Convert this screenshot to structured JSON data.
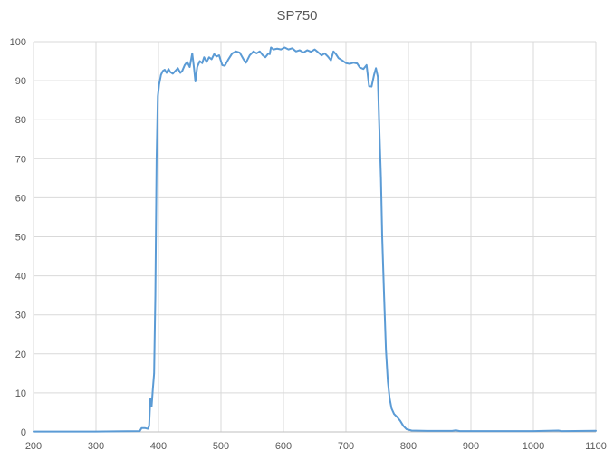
{
  "chart_data": {
    "type": "line",
    "title": "SP750",
    "xlabel": "",
    "ylabel": "",
    "xlim": [
      200,
      1100
    ],
    "ylim": [
      0,
      100
    ],
    "x_ticks": [
      200,
      300,
      400,
      500,
      600,
      700,
      800,
      900,
      1000,
      1100
    ],
    "y_ticks": [
      0,
      10,
      20,
      30,
      40,
      50,
      60,
      70,
      80,
      90,
      100
    ],
    "grid": true,
    "legend": "none",
    "series": [
      {
        "color": "#5b9bd5",
        "points": [
          [
            200,
            0.1
          ],
          [
            300,
            0.1
          ],
          [
            370,
            0.2
          ],
          [
            373,
            1.0
          ],
          [
            378,
            1.0
          ],
          [
            383,
            0.8
          ],
          [
            385,
            1.5
          ],
          [
            387,
            8.5
          ],
          [
            389,
            6.5
          ],
          [
            391,
            11
          ],
          [
            393,
            15
          ],
          [
            395,
            35
          ],
          [
            397,
            70
          ],
          [
            399,
            86
          ],
          [
            401,
            89
          ],
          [
            404,
            91.5
          ],
          [
            407,
            92.5
          ],
          [
            410,
            92.8
          ],
          [
            413,
            92.0
          ],
          [
            416,
            93.0
          ],
          [
            419,
            92.2
          ],
          [
            423,
            91.8
          ],
          [
            427,
            92.5
          ],
          [
            431,
            93.2
          ],
          [
            435,
            92.0
          ],
          [
            438,
            92.5
          ],
          [
            442,
            94.0
          ],
          [
            446,
            94.8
          ],
          [
            450,
            93.5
          ],
          [
            454,
            97.0
          ],
          [
            457,
            93.0
          ],
          [
            459,
            89.8
          ],
          [
            462,
            93.5
          ],
          [
            466,
            95.0
          ],
          [
            470,
            94.5
          ],
          [
            473,
            96.0
          ],
          [
            477,
            94.8
          ],
          [
            481,
            96.0
          ],
          [
            485,
            95.5
          ],
          [
            489,
            96.8
          ],
          [
            493,
            96.2
          ],
          [
            497,
            96.5
          ],
          [
            502,
            94.0
          ],
          [
            506,
            93.8
          ],
          [
            512,
            95.5
          ],
          [
            518,
            97.0
          ],
          [
            524,
            97.5
          ],
          [
            530,
            97.2
          ],
          [
            536,
            95.5
          ],
          [
            540,
            94.6
          ],
          [
            546,
            96.5
          ],
          [
            552,
            97.5
          ],
          [
            557,
            97.0
          ],
          [
            562,
            97.5
          ],
          [
            567,
            96.5
          ],
          [
            571,
            96.0
          ],
          [
            576,
            97.0
          ],
          [
            578,
            96.8
          ],
          [
            580,
            98.5
          ],
          [
            584,
            98.0
          ],
          [
            590,
            98.2
          ],
          [
            596,
            98.0
          ],
          [
            602,
            98.5
          ],
          [
            608,
            98.0
          ],
          [
            614,
            98.3
          ],
          [
            620,
            97.5
          ],
          [
            626,
            97.8
          ],
          [
            632,
            97.2
          ],
          [
            638,
            97.8
          ],
          [
            644,
            97.4
          ],
          [
            650,
            98.0
          ],
          [
            656,
            97.2
          ],
          [
            661,
            96.5
          ],
          [
            666,
            97.0
          ],
          [
            671,
            96.2
          ],
          [
            676,
            95.2
          ],
          [
            680,
            97.5
          ],
          [
            684,
            96.8
          ],
          [
            688,
            95.8
          ],
          [
            694,
            95.2
          ],
          [
            700,
            94.5
          ],
          [
            706,
            94.3
          ],
          [
            712,
            94.6
          ],
          [
            718,
            94.4
          ],
          [
            722,
            93.4
          ],
          [
            728,
            93.0
          ],
          [
            733,
            94.0
          ],
          [
            737,
            88.6
          ],
          [
            741,
            88.5
          ],
          [
            745,
            91.5
          ],
          [
            748,
            93.2
          ],
          [
            751,
            91.0
          ],
          [
            753,
            80
          ],
          [
            756,
            65
          ],
          [
            758,
            50
          ],
          [
            761,
            35
          ],
          [
            764,
            21
          ],
          [
            767,
            13
          ],
          [
            770,
            8.5
          ],
          [
            773,
            6.0
          ],
          [
            777,
            4.6
          ],
          [
            782,
            3.8
          ],
          [
            787,
            2.8
          ],
          [
            792,
            1.5
          ],
          [
            797,
            0.7
          ],
          [
            805,
            0.35
          ],
          [
            830,
            0.25
          ],
          [
            870,
            0.25
          ],
          [
            876,
            0.4
          ],
          [
            882,
            0.2
          ],
          [
            1000,
            0.2
          ],
          [
            1040,
            0.35
          ],
          [
            1045,
            0.2
          ],
          [
            1100,
            0.3
          ]
        ]
      }
    ]
  }
}
